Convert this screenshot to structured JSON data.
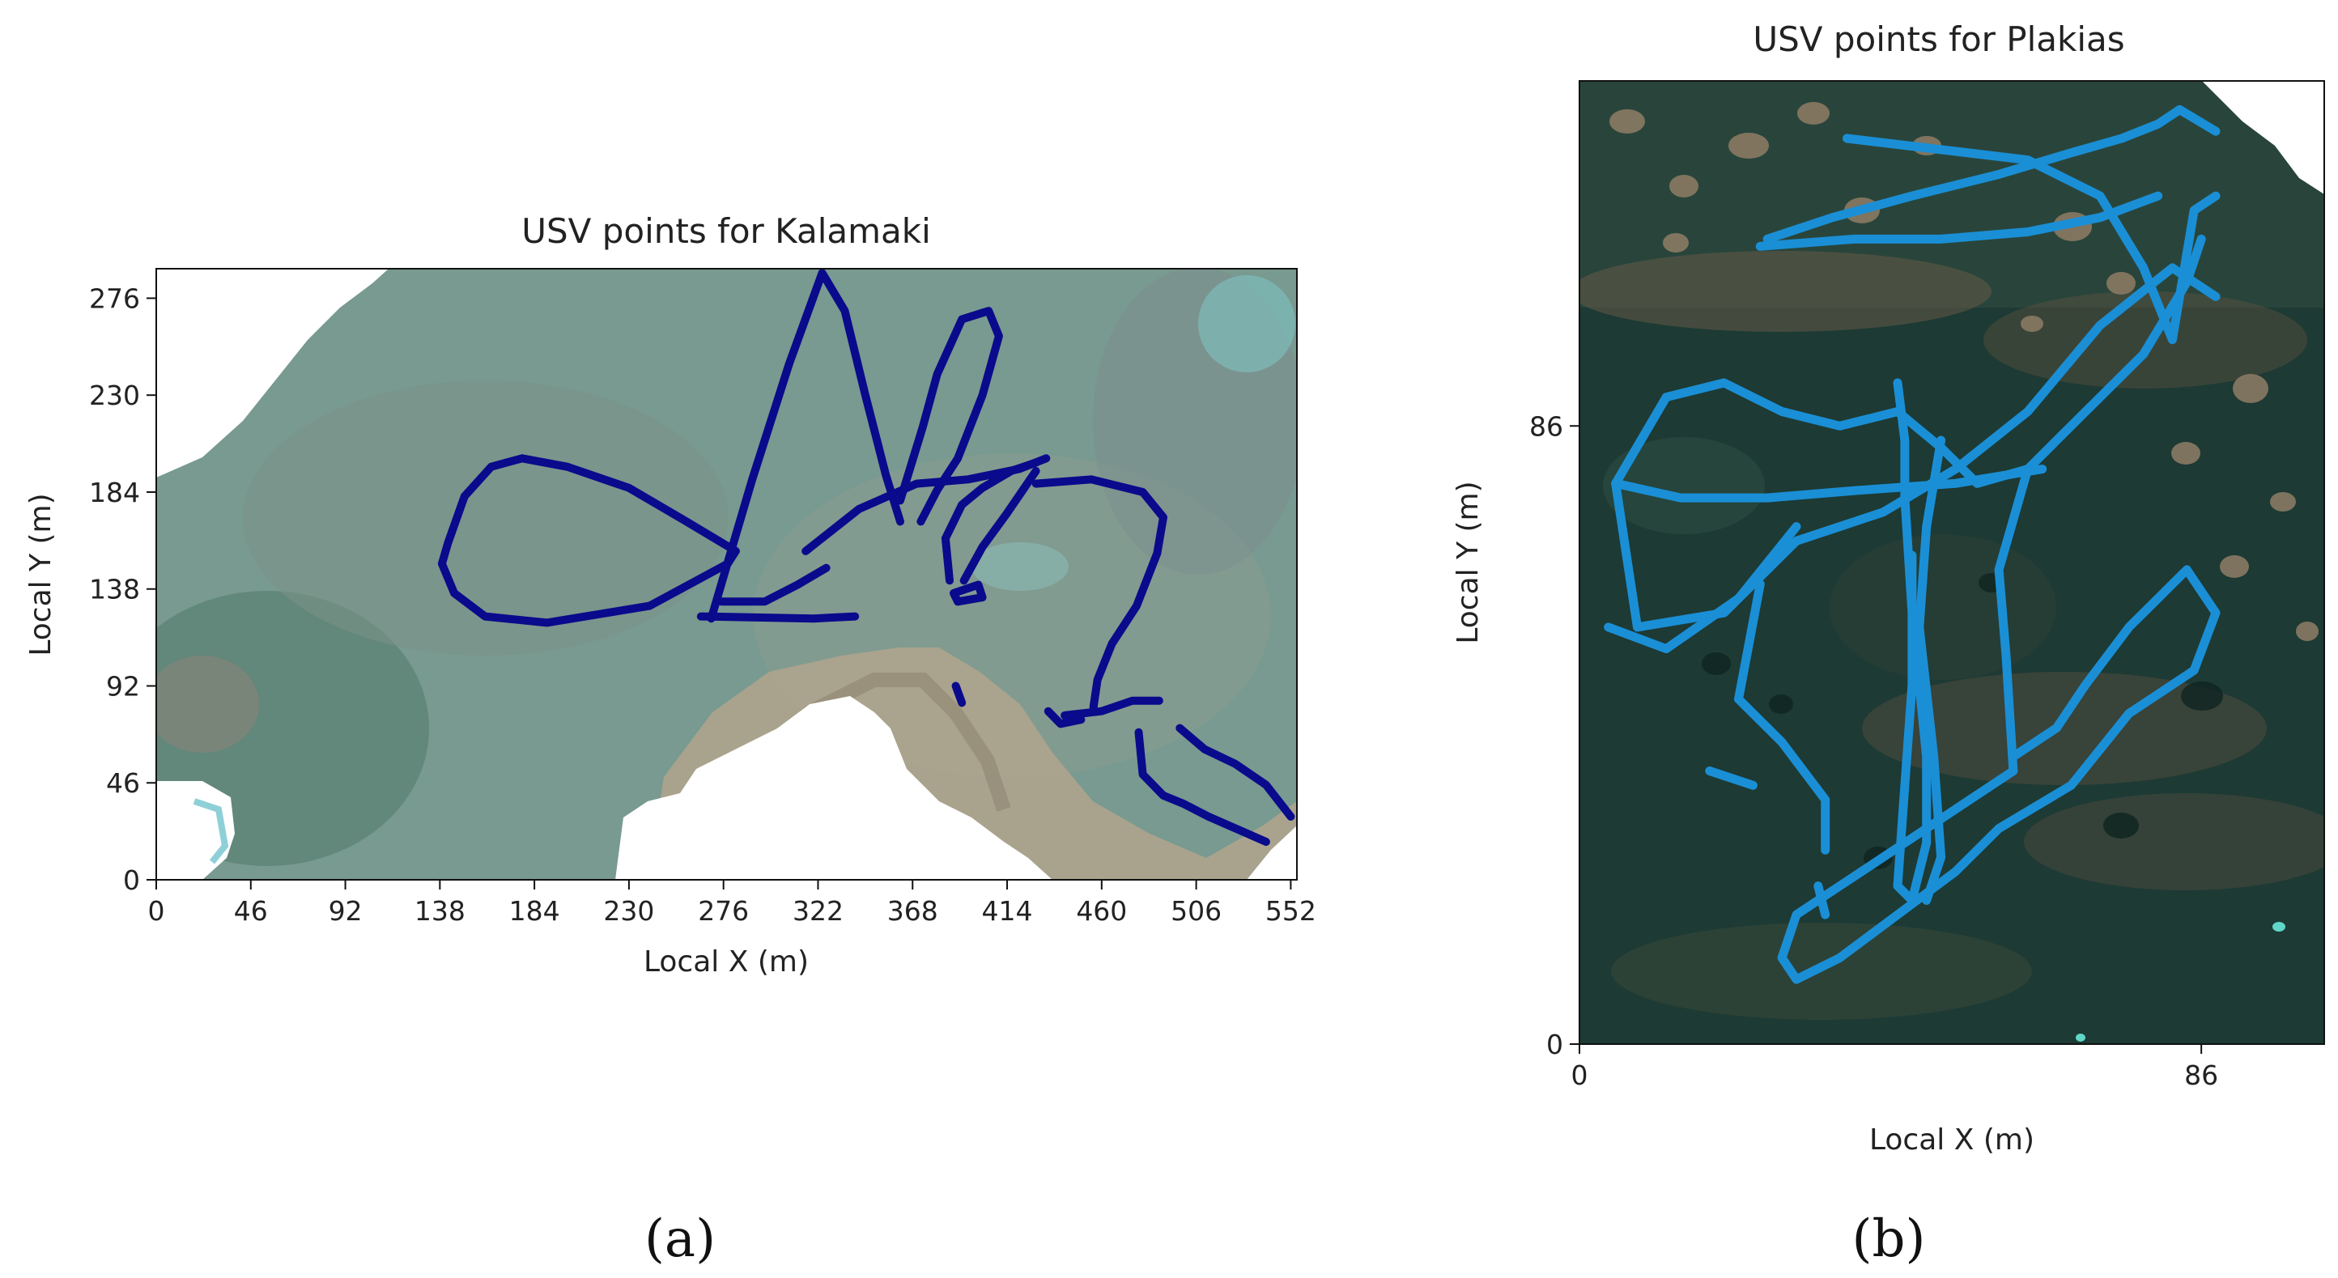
{
  "colors": {
    "panel_a_track": "#0a0a8c",
    "panel_b_track": "#1a8fd6",
    "ortho_a_water": "#6e8f86",
    "ortho_a_land": "#a89b86",
    "ortho_b_water": "#1d3a34",
    "ortho_b_rock": "#7a6a55"
  },
  "chart_data": [
    {
      "type": "scatter",
      "title": "USV points for Kalamaki",
      "xlabel": "Local X (m)",
      "ylabel": "Local Y (m)",
      "xlim": [
        0,
        555
      ],
      "ylim": [
        0,
        290
      ],
      "x_ticks": [
        0,
        46,
        92,
        138,
        184,
        230,
        276,
        322,
        368,
        414,
        460,
        506,
        552
      ],
      "y_ticks": [
        0,
        46,
        92,
        138,
        184,
        230,
        276
      ],
      "grid": false,
      "background": "orthophoto",
      "panel_label": "(a)",
      "series": [
        {
          "tracks": [
            [
              [
                142,
                160
              ],
              [
                150,
                182
              ],
              [
                163,
                196
              ],
              [
                178,
                200
              ],
              [
                200,
                196
              ],
              [
                230,
                186
              ],
              [
                258,
                170
              ],
              [
                282,
                156
              ],
              [
                278,
                150
              ],
              [
                240,
                130
              ],
              [
                190,
                122
              ],
              [
                160,
                125
              ],
              [
                145,
                136
              ],
              [
                139,
                150
              ],
              [
                142,
                160
              ]
            ],
            [
              [
                270,
                124
              ],
              [
                290,
                190
              ],
              [
                308,
                245
              ],
              [
                324,
                288
              ],
              [
                335,
                270
              ],
              [
                345,
                230
              ],
              [
                355,
                192
              ],
              [
                362,
                170
              ]
            ],
            [
              [
                265,
                125
              ],
              [
                320,
                124
              ],
              [
                340,
                125
              ]
            ],
            [
              [
                275,
                132
              ],
              [
                296,
                132
              ],
              [
                312,
                140
              ],
              [
                326,
                148
              ]
            ],
            [
              [
                316,
                156
              ],
              [
                342,
                176
              ],
              [
                370,
                188
              ],
              [
                395,
                190
              ],
              [
                420,
                195
              ],
              [
                433,
                200
              ]
            ],
            [
              [
                362,
                180
              ],
              [
                373,
                215
              ],
              [
                380,
                240
              ],
              [
                392,
                266
              ],
              [
                405,
                270
              ],
              [
                410,
                258
              ],
              [
                402,
                230
              ],
              [
                390,
                200
              ],
              [
                380,
                185
              ],
              [
                372,
                170
              ]
            ],
            [
              [
                386,
                142
              ],
              [
                384,
                162
              ],
              [
                392,
                178
              ],
              [
                402,
                186
              ],
              [
                416,
                194
              ],
              [
                428,
                198
              ]
            ],
            [
              [
                393,
                142
              ],
              [
                402,
                158
              ],
              [
                414,
                174
              ],
              [
                428,
                194
              ]
            ],
            [
              [
                388,
                136
              ],
              [
                400,
                140
              ],
              [
                402,
                134
              ],
              [
                390,
                132
              ],
              [
                388,
                136
              ]
            ],
            [
              [
                428,
                188
              ],
              [
                455,
                190
              ],
              [
                480,
                184
              ],
              [
                490,
                172
              ],
              [
                487,
                155
              ],
              [
                477,
                130
              ],
              [
                465,
                112
              ],
              [
                458,
                95
              ],
              [
                456,
                82
              ]
            ],
            [
              [
                442,
                78
              ],
              [
                460,
                80
              ],
              [
                475,
                85
              ],
              [
                488,
                85
              ]
            ],
            [
              [
                434,
                80
              ],
              [
                440,
                74
              ],
              [
                450,
                76
              ]
            ],
            [
              [
                478,
                70
              ],
              [
                480,
                50
              ],
              [
                490,
                40
              ],
              [
                500,
                36
              ],
              [
                512,
                30
              ],
              [
                540,
                18
              ]
            ],
            [
              [
                498,
                72
              ],
              [
                510,
                62
              ],
              [
                525,
                55
              ],
              [
                540,
                45
              ],
              [
                552,
                30
              ]
            ],
            [
              [
                389,
                92
              ],
              [
                392,
                84
              ]
            ]
          ]
        }
      ]
    },
    {
      "type": "scatter",
      "title": "USV points for Plakias",
      "xlabel": "Local X (m)",
      "ylabel": "Local Y (m)",
      "xlim": [
        0,
        103
      ],
      "ylim": [
        0,
        134
      ],
      "x_ticks": [
        0,
        86
      ],
      "y_ticks": [
        0,
        86
      ],
      "grid": false,
      "background": "orthophoto",
      "panel_label": "(b)",
      "series": [
        {
          "tracks": [
            [
              [
                26,
                112
              ],
              [
                35,
                115
              ],
              [
                46,
                118
              ],
              [
                58,
                121
              ],
              [
                68,
                124
              ],
              [
                75,
                126
              ],
              [
                80,
                128
              ],
              [
                83,
                130
              ],
              [
                88,
                127
              ]
            ],
            [
              [
                25,
                111
              ],
              [
                38,
                112
              ],
              [
                50,
                112
              ],
              [
                62,
                113
              ],
              [
                72,
                115
              ],
              [
                80,
                118
              ]
            ],
            [
              [
                37,
                126
              ],
              [
                62,
                123
              ],
              [
                72,
                118
              ],
              [
                78,
                108
              ],
              [
                82,
                98
              ],
              [
                85,
                116
              ],
              [
                88,
                118
              ]
            ],
            [
              [
                88,
                104
              ],
              [
                82,
                108
              ],
              [
                72,
                100
              ],
              [
                62,
                88
              ],
              [
                52,
                80
              ],
              [
                42,
                74
              ],
              [
                30,
                70
              ],
              [
                20,
                60
              ],
              [
                8,
                58
              ],
              [
                5,
                78
              ],
              [
                12,
                90
              ],
              [
                20,
                92
              ],
              [
                28,
                88
              ],
              [
                36,
                86
              ],
              [
                44,
                88
              ],
              [
                50,
                83
              ],
              [
                55,
                78
              ],
              [
                62,
                80
              ],
              [
                70,
                88
              ],
              [
                78,
                96
              ],
              [
                84,
                106
              ],
              [
                86,
                112
              ]
            ],
            [
              [
                5,
                78
              ],
              [
                14,
                76
              ],
              [
                26,
                76
              ],
              [
                38,
                77
              ],
              [
                52,
                78
              ],
              [
                64,
                80
              ]
            ],
            [
              [
                30,
                72
              ],
              [
                22,
                62
              ],
              [
                12,
                55
              ],
              [
                4,
                58
              ]
            ],
            [
              [
                44,
                92
              ],
              [
                45,
                84
              ],
              [
                45,
                76
              ],
              [
                46,
                60
              ],
              [
                48,
                40
              ],
              [
                48,
                28
              ],
              [
                46,
                20
              ],
              [
                44,
                22
              ],
              [
                45,
                36
              ],
              [
                46,
                50
              ],
              [
                46,
                68
              ]
            ],
            [
              [
                50,
                84
              ],
              [
                48,
                72
              ],
              [
                47,
                58
              ],
              [
                49,
                40
              ],
              [
                50,
                26
              ],
              [
                48,
                20
              ]
            ],
            [
              [
                62,
                80
              ],
              [
                58,
                66
              ],
              [
                59,
                54
              ],
              [
                60,
                38
              ],
              [
                48,
                30
              ],
              [
                36,
                22
              ],
              [
                30,
                18
              ],
              [
                28,
                12
              ],
              [
                30,
                9
              ],
              [
                36,
                12
              ],
              [
                44,
                18
              ],
              [
                52,
                24
              ],
              [
                58,
                30
              ],
              [
                68,
                36
              ],
              [
                76,
                46
              ],
              [
                85,
                52
              ],
              [
                88,
                60
              ],
              [
                84,
                66
              ],
              [
                76,
                58
              ],
              [
                70,
                50
              ],
              [
                66,
                44
              ],
              [
                60,
                40
              ]
            ],
            [
              [
                25,
                64
              ],
              [
                22,
                48
              ],
              [
                28,
                42
              ],
              [
                34,
                34
              ],
              [
                34,
                27
              ]
            ],
            [
              [
                34,
                18
              ],
              [
                33,
                22
              ]
            ],
            [
              [
                18,
                38
              ],
              [
                24,
                36
              ]
            ]
          ]
        }
      ]
    }
  ]
}
